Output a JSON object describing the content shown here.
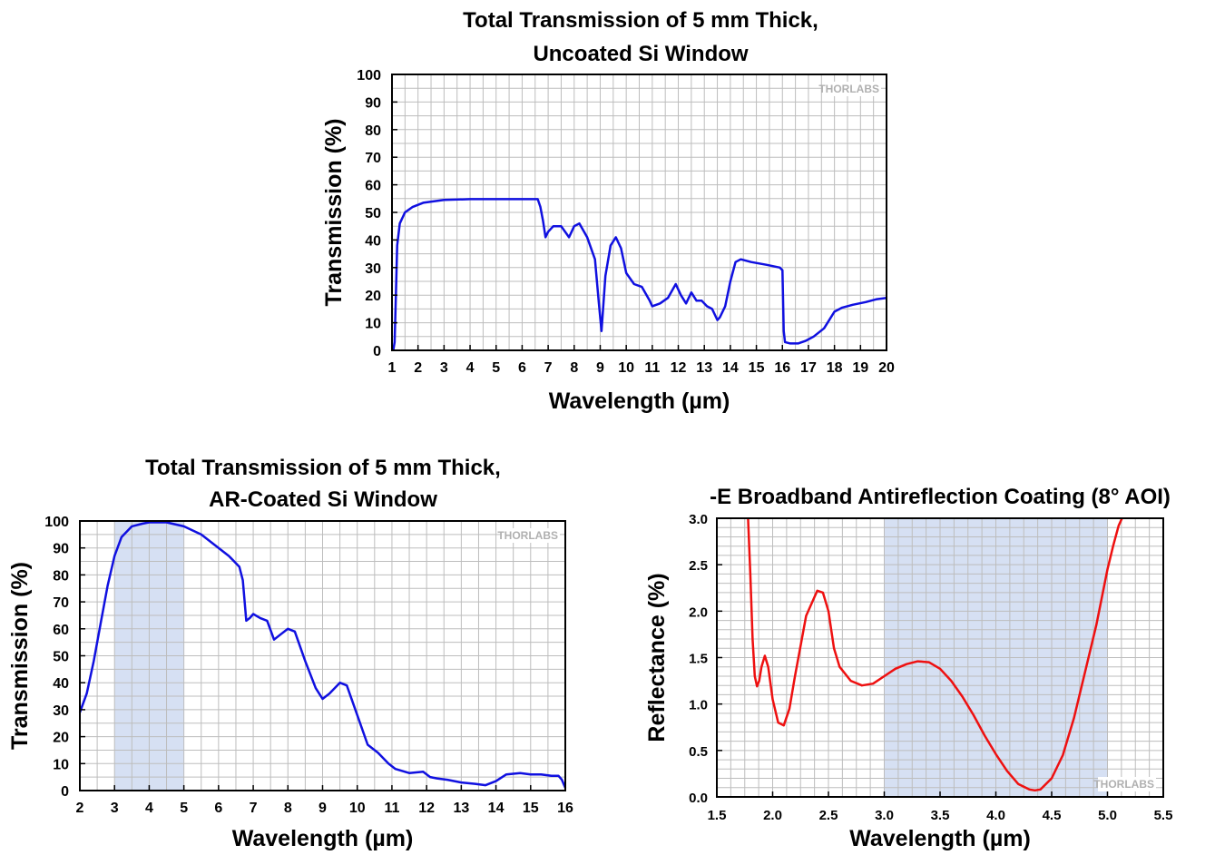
{
  "chart_data": [
    {
      "type": "line",
      "title_lines": [
        "Total Transmission of 5 mm Thick,",
        "Uncoated Si Window"
      ],
      "xlabel": "Wavelength (µm)",
      "ylabel": "Transmission (%)",
      "xlim": [
        1,
        20
      ],
      "ylim": [
        0,
        100
      ],
      "xticks": [
        1,
        2,
        3,
        4,
        5,
        6,
        7,
        8,
        9,
        10,
        11,
        12,
        13,
        14,
        15,
        16,
        17,
        18,
        19,
        20
      ],
      "yticks": [
        0,
        10,
        20,
        30,
        40,
        50,
        60,
        70,
        80,
        90,
        100
      ],
      "grid": true,
      "watermark": "THORLABS",
      "series": [
        {
          "color": "#1010e0",
          "x": [
            1.05,
            1.1,
            1.15,
            1.2,
            1.3,
            1.5,
            1.8,
            2.2,
            3,
            4,
            5,
            6,
            6.6,
            6.7,
            6.8,
            6.9,
            7.0,
            7.2,
            7.5,
            7.8,
            8.0,
            8.2,
            8.5,
            8.8,
            8.95,
            9.05,
            9.2,
            9.4,
            9.6,
            9.8,
            10.0,
            10.3,
            10.6,
            10.9,
            11.0,
            11.3,
            11.6,
            11.9,
            12.1,
            12.3,
            12.5,
            12.7,
            12.9,
            13.1,
            13.3,
            13.5,
            13.6,
            13.8,
            14.0,
            14.2,
            14.4,
            14.8,
            15.4,
            15.9,
            16.0,
            16.05,
            16.1,
            16.3,
            16.6,
            16.9,
            17.2,
            17.6,
            17.8,
            18.0,
            18.3,
            18.7,
            19.2,
            19.6,
            20
          ],
          "y": [
            0,
            3,
            20,
            38,
            46,
            50,
            52,
            53.5,
            54.5,
            54.8,
            54.8,
            54.8,
            54.8,
            52,
            47,
            41,
            43,
            45,
            45,
            41,
            45,
            46,
            41,
            33,
            17,
            7,
            27,
            38,
            41,
            37,
            28,
            24,
            23,
            18,
            16,
            17,
            19,
            24,
            20,
            17,
            21,
            18,
            18,
            16,
            15,
            11,
            12,
            16,
            25,
            32,
            33,
            32,
            31,
            30,
            29,
            7,
            3,
            2.5,
            2.5,
            3.5,
            5,
            8,
            11,
            14,
            15.5,
            16.5,
            17.5,
            18.5,
            19
          ]
        }
      ]
    },
    {
      "type": "line",
      "title_lines": [
        "Total Transmission of 5 mm Thick,",
        "AR-Coated Si Window"
      ],
      "xlabel": "Wavelength (µm)",
      "ylabel": "Transmission (%)",
      "xlim": [
        2,
        16
      ],
      "ylim": [
        0,
        100
      ],
      "xticks": [
        2,
        3,
        4,
        5,
        6,
        7,
        8,
        9,
        10,
        11,
        12,
        13,
        14,
        15,
        16
      ],
      "yticks": [
        0,
        10,
        20,
        30,
        40,
        50,
        60,
        70,
        80,
        90,
        100
      ],
      "grid": true,
      "shaded_band": [
        3,
        5
      ],
      "watermark": "THORLABS",
      "series": [
        {
          "color": "#1010e0",
          "x": [
            2.0,
            2.2,
            2.4,
            2.6,
            2.8,
            3.0,
            3.2,
            3.5,
            3.8,
            4.0,
            4.5,
            5.0,
            5.5,
            6.0,
            6.3,
            6.6,
            6.7,
            6.8,
            6.9,
            7.0,
            7.2,
            7.4,
            7.6,
            7.8,
            8.0,
            8.2,
            8.5,
            8.8,
            9.0,
            9.2,
            9.5,
            9.7,
            10.0,
            10.3,
            10.6,
            10.9,
            11.1,
            11.5,
            11.9,
            12.1,
            12.3,
            12.6,
            13.0,
            13.4,
            13.7,
            14.0,
            14.3,
            14.7,
            15.0,
            15.3,
            15.6,
            15.8,
            15.9,
            16.0
          ],
          "y": [
            29,
            36,
            48,
            62,
            76,
            87,
            94,
            98,
            99,
            99.5,
            99.5,
            98,
            95,
            90,
            87,
            83,
            78,
            63,
            64,
            65.5,
            64,
            63,
            56,
            58,
            60,
            59,
            48,
            38,
            34,
            36,
            40,
            39,
            28,
            17,
            14,
            10,
            8,
            6.5,
            7,
            5,
            4.5,
            4,
            3,
            2.5,
            2,
            3.5,
            6,
            6.5,
            6,
            6,
            5.5,
            5.5,
            4,
            1
          ]
        }
      ]
    },
    {
      "type": "line",
      "title_lines": [
        "-E Broadband Antireflection Coating (8° AOI)"
      ],
      "xlabel": "Wavelength (µm)",
      "ylabel": "Reflectance (%)",
      "xlim": [
        1.5,
        5.5
      ],
      "ylim": [
        0,
        3.0
      ],
      "xticks": [
        "1.5",
        "2.0",
        "2.5",
        "3.0",
        "3.5",
        "4.0",
        "4.5",
        "5.0",
        "5.5"
      ],
      "yticks": [
        "0.0",
        "0.5",
        "1.0",
        "1.5",
        "2.0",
        "2.5",
        "3.0"
      ],
      "grid": true,
      "shaded_band": [
        3.0,
        5.0
      ],
      "watermark": "THORLABS",
      "series": [
        {
          "color": "#ee1010",
          "x": [
            1.78,
            1.8,
            1.82,
            1.84,
            1.86,
            1.88,
            1.9,
            1.93,
            1.96,
            2.0,
            2.05,
            2.1,
            2.15,
            2.2,
            2.3,
            2.4,
            2.45,
            2.5,
            2.55,
            2.6,
            2.7,
            2.8,
            2.9,
            3.0,
            3.1,
            3.2,
            3.3,
            3.4,
            3.5,
            3.6,
            3.7,
            3.8,
            3.9,
            4.0,
            4.1,
            4.2,
            4.3,
            4.35,
            4.4,
            4.5,
            4.6,
            4.7,
            4.8,
            4.9,
            5.0,
            5.05,
            5.1,
            5.13
          ],
          "y": [
            3.0,
            2.4,
            1.7,
            1.3,
            1.19,
            1.25,
            1.4,
            1.52,
            1.4,
            1.05,
            0.8,
            0.77,
            0.95,
            1.3,
            1.95,
            2.22,
            2.2,
            2.0,
            1.6,
            1.4,
            1.25,
            1.2,
            1.22,
            1.3,
            1.38,
            1.43,
            1.46,
            1.45,
            1.38,
            1.25,
            1.08,
            0.88,
            0.66,
            0.46,
            0.28,
            0.14,
            0.08,
            0.07,
            0.08,
            0.2,
            0.45,
            0.85,
            1.35,
            1.85,
            2.45,
            2.7,
            2.92,
            3.0
          ]
        }
      ]
    }
  ]
}
